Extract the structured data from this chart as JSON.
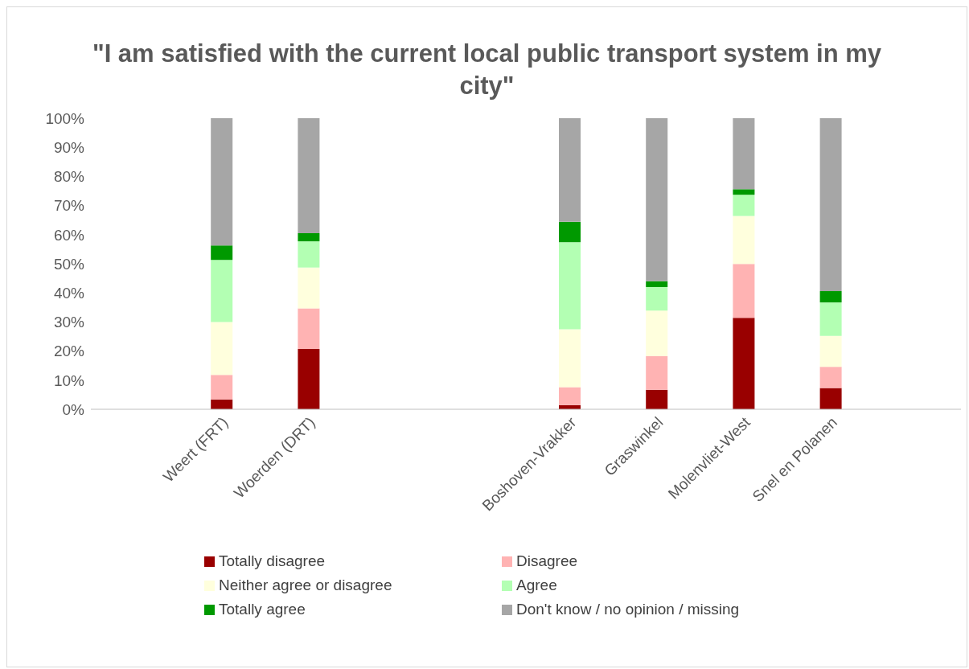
{
  "chart_data": {
    "type": "bar",
    "title": "\"I am satisfied with the current local public transport system in my city\"",
    "categories": [
      null,
      "Weert (FRT)",
      "Woerden (DRT)",
      null,
      null,
      "Boshoven-Vrakker",
      "Graswinkel",
      "Molenvliet-West",
      "Snel en Polanen",
      null
    ],
    "stacked": true,
    "series": [
      {
        "name": "Totally disagree",
        "color": "#990000",
        "values": [
          null,
          3.4,
          20.7,
          null,
          null,
          1.4,
          6.7,
          31.4,
          7.3,
          null
        ]
      },
      {
        "name": "Disagree",
        "color": "#ffb3b3",
        "values": [
          null,
          8.4,
          14,
          null,
          null,
          6.2,
          11.5,
          18.5,
          7.3,
          null
        ]
      },
      {
        "name": "Neither agree or disagree",
        "color": "#ffffdd",
        "values": [
          null,
          18.2,
          14,
          null,
          null,
          19.9,
          15.7,
          16.5,
          10.6,
          null
        ]
      },
      {
        "name": "Agree",
        "color": "#b3ffb3",
        "values": [
          null,
          21.3,
          9,
          null,
          null,
          29.9,
          8.1,
          7.3,
          11.5,
          null
        ]
      },
      {
        "name": "Totally agree",
        "color": "#009900",
        "values": [
          null,
          5,
          2.8,
          null,
          null,
          7,
          2,
          1.9,
          3.9,
          null
        ]
      },
      {
        "name": "Don't know / no opinion / missing",
        "color": "#a6a6a6",
        "values": [
          null,
          43.7,
          39.5,
          null,
          null,
          35.6,
          56,
          24.4,
          59.4,
          null
        ]
      }
    ],
    "ylim": [
      0,
      100
    ],
    "yticks": [
      {
        "value": 0,
        "label": "0%"
      },
      {
        "value": 10,
        "label": "10%"
      },
      {
        "value": 20,
        "label": "20%"
      },
      {
        "value": 30,
        "label": "30%"
      },
      {
        "value": 40,
        "label": "40%"
      },
      {
        "value": 50,
        "label": "50%"
      },
      {
        "value": 60,
        "label": "60%"
      },
      {
        "value": 70,
        "label": "70%"
      },
      {
        "value": 80,
        "label": "80%"
      },
      {
        "value": 90,
        "label": "90%"
      },
      {
        "value": 100,
        "label": "100%"
      }
    ],
    "grid": false,
    "legend": "bottom"
  }
}
